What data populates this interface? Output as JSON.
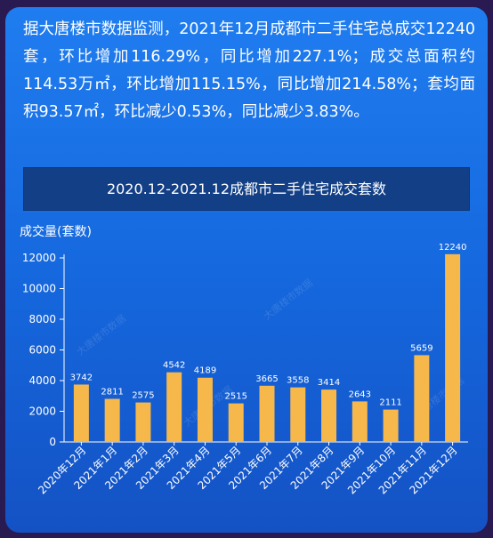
{
  "intro_text": "据大唐楼市数据监测，2021年12月成都市二手住宅总成交12240套，环比增加116.29%，同比增加227.1%；成交总面积约114.53万㎡，环比增加115.15%，同比增加214.58%；套均面积93.57㎡，环比减少0.53%，同比减少3.83%。",
  "watermark": "大唐楼市数据",
  "colors": {
    "bar": "#f7b84b",
    "background": "#1f7df0",
    "title_bar": "#123f86",
    "text": "#ffffff"
  },
  "chart_data": {
    "type": "bar",
    "title": "2020.12-2021.12成都市二手住宅成交套数",
    "ylabel": "成交量(套数)",
    "xlabel": "",
    "categories": [
      "2020年12月",
      "2021年1月",
      "2021年2月",
      "2021年3月",
      "2021年4月",
      "2021年5月",
      "2021年6月",
      "2021年7月",
      "2021年8月",
      "2021年9月",
      "2021年10月",
      "2021年11月",
      "2021年12月"
    ],
    "values": [
      3742,
      2811,
      2575,
      4542,
      4189,
      2515,
      3665,
      3558,
      3414,
      2643,
      2111,
      5659,
      12240
    ],
    "ylim": [
      0,
      12000
    ],
    "yticks": [
      0,
      2000,
      4000,
      6000,
      8000,
      10000,
      12000
    ],
    "grid": false,
    "legend": "none"
  }
}
